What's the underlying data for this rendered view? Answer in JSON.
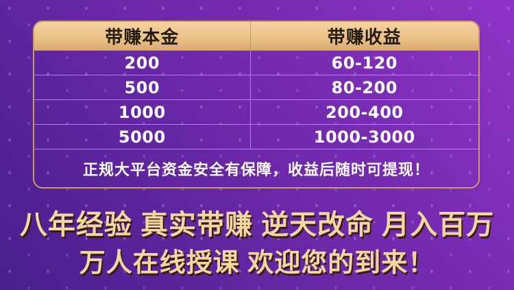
{
  "table": {
    "headers": {
      "principal": "带赚本金",
      "profit": "带赚收益"
    },
    "rows": [
      {
        "principal": "200",
        "profit": "60-120"
      },
      {
        "principal": "500",
        "profit": "80-200"
      },
      {
        "principal": "1000",
        "profit": "200-400"
      },
      {
        "principal": "5000",
        "profit": "1000-3000"
      }
    ],
    "note": "正规大平台资金安全有保障，收益后随时可提现！"
  },
  "promo": {
    "line1": "八年经验 真实带赚 逆天改命 月入百万",
    "line2": "万人在线授课 欢迎您的到来！"
  },
  "chart_data": {
    "type": "table",
    "columns": [
      "带赚本金",
      "带赚收益"
    ],
    "rows": [
      [
        "200",
        "60-120"
      ],
      [
        "500",
        "80-200"
      ],
      [
        "1000",
        "200-400"
      ],
      [
        "5000",
        "1000-3000"
      ]
    ]
  },
  "colors": {
    "bg-dark": "#471f8c",
    "bg-mid": "#6b28a8",
    "bg-bright": "#8e33c6",
    "gold-border": "#c79d62",
    "gold-top": "#f3d2a0",
    "gold-bottom": "#dcab6e",
    "header-text": "#241b11",
    "cell-text": "#ffffff",
    "promo-gold": "#f3d89c"
  }
}
